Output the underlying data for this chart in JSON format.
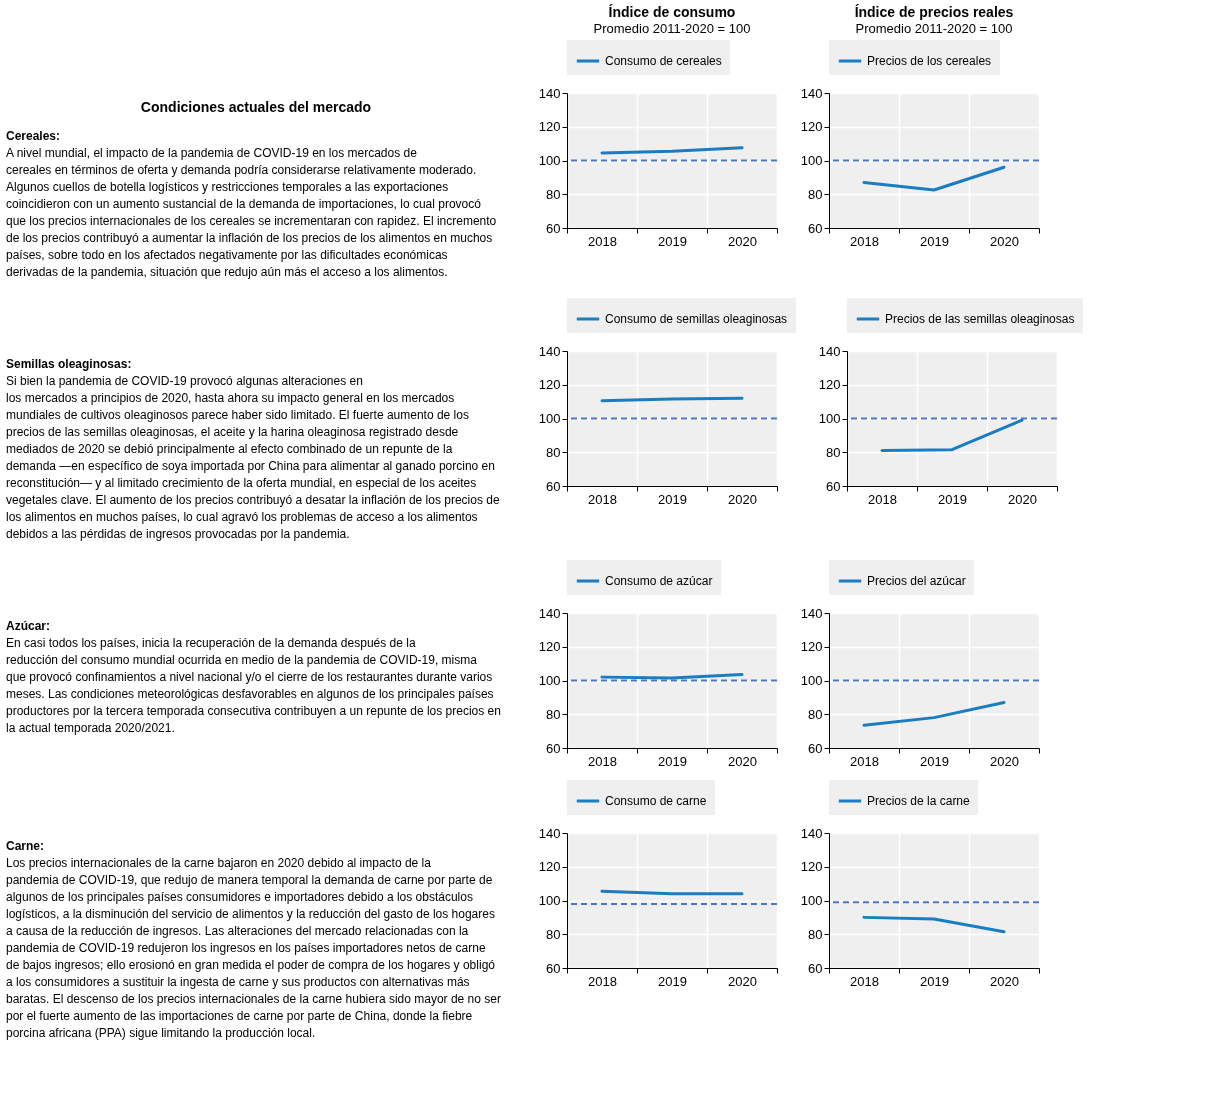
{
  "chart_data": [
    {
      "type": "other",
      "title": "Condiciones actuales del mercado",
      "subtitle": "Cereales:",
      "annotations": [
        "A nivel mundial, el impacto de la pandemia de COVID-19 en los mercados de",
        "cereales en términos de oferta y demanda podría considerarse relativamente moderado.",
        "Algunos cuellos de botella logísticos y restricciones temporales a las exportaciones",
        "coincidieron con un aumento sustancial de la demanda de importaciones, lo cual provocó",
        "que los precios internacionales de los cereales se incrementaran con rapidez. El incremento",
        "de los precios contribuyó a aumentar la inflación de los precios de los alimentos en muchos",
        "países, sobre todo en los afectados negativamente por las dificultades económicas",
        "derivadas de la pandemia, situación que redujo aún más el acceso a los alimentos."
      ]
    },
    {
      "type": "line",
      "title": "Índice de consumo",
      "subtitle": "Promedio 2011-2020 = 100",
      "categories": [
        "2018",
        "2019",
        "2020"
      ],
      "series": [
        {
          "name": "Consumo de cereales",
          "color": "#1a7dc2",
          "values": [
            104.5,
            105.5,
            107.5
          ]
        }
      ],
      "ylim": [
        60,
        140
      ],
      "yticks": [
        60,
        80,
        100,
        120,
        140
      ],
      "ref_lines": [
        {
          "axis": "y",
          "value": 100,
          "color": "#4a78c8",
          "line_style": "dashed"
        }
      ],
      "grid": true,
      "legend": "top",
      "line_style": "solid"
    },
    {
      "type": "line",
      "title": "Índice de precios reales",
      "subtitle": "Promedio 2011-2020 = 100",
      "categories": [
        "2018",
        "2019",
        "2020"
      ],
      "series": [
        {
          "name": "Precios de los cereales",
          "color": "#1a7dc2",
          "values": [
            87,
            82.5,
            96
          ]
        }
      ],
      "ylim": [
        60,
        140
      ],
      "yticks": [
        60,
        80,
        100,
        120,
        140
      ],
      "ref_lines": [
        {
          "axis": "y",
          "value": 100,
          "color": "#4a78c8",
          "line_style": "dashed"
        }
      ],
      "grid": true,
      "legend": "top",
      "line_style": "solid"
    },
    {
      "type": "other",
      "subtitle": "Semillas oleaginosas:",
      "annotations": [
        "Si bien la pandemia de COVID-19 provocó algunas alteraciones en",
        "los mercados a principios de 2020, hasta ahora su impacto general en los mercados",
        "mundiales de cultivos oleaginosos parece haber sido limitado. El fuerte aumento de los",
        "precios de las semillas oleaginosas, el aceite y la harina oleaginosa registrado desde",
        "mediados de 2020 se debió principalmente al efecto combinado de un repunte de la",
        "demanda —en específico de soya importada por China para alimentar al ganado porcino en",
        "reconstitución— y al limitado crecimiento de la oferta mundial, en especial de los aceites",
        "vegetales clave. El aumento de los precios contribuyó a desatar la inflación de los precios de",
        "los alimentos en muchos países, lo cual agravó los problemas de acceso a los alimentos",
        "debidos a las pérdidas de ingresos provocadas por la pandemia."
      ]
    },
    {
      "type": "line",
      "categories": [
        "2018",
        "2019",
        "2020"
      ],
      "series": [
        {
          "name": "Consumo de semillas oleaginosas",
          "color": "#1a7dc2",
          "values": [
            110.5,
            111.5,
            112
          ]
        }
      ],
      "ylim": [
        60,
        140
      ],
      "yticks": [
        60,
        80,
        100,
        120,
        140
      ],
      "ref_lines": [
        {
          "axis": "y",
          "value": 100,
          "color": "#4a78c8",
          "line_style": "dashed"
        }
      ],
      "grid": true,
      "legend": "top",
      "line_style": "solid"
    },
    {
      "type": "line",
      "categories": [
        "2018",
        "2019",
        "2020"
      ],
      "series": [
        {
          "name": "Precios de las semillas oleaginosas",
          "color": "#1a7dc2",
          "values": [
            81,
            81.5,
            99
          ]
        }
      ],
      "ylim": [
        60,
        140
      ],
      "yticks": [
        60,
        80,
        100,
        120,
        140
      ],
      "ref_lines": [
        {
          "axis": "y",
          "value": 100,
          "color": "#4a78c8",
          "line_style": "dashed"
        }
      ],
      "grid": true,
      "legend": "top",
      "line_style": "solid"
    },
    {
      "type": "other",
      "subtitle": "Azúcar:",
      "annotations": [
        "En casi todos los países, inicia la recuperación de la demanda después de la",
        "reducción del consumo mundial ocurrida en medio de la pandemia de COVID-19, misma",
        "que provocó confinamientos a nivel nacional y/o el cierre de los restaurantes durante varios",
        "meses. Las condiciones meteorológicas desfavorables en algunos de los principales países",
        "productores por la tercera temporada consecutiva contribuyen a un repunte de los precios en",
        "la actual temporada 2020/2021."
      ]
    },
    {
      "type": "line",
      "categories": [
        "2018",
        "2019",
        "2020"
      ],
      "series": [
        {
          "name": "Consumo de azúcar",
          "color": "#1a7dc2",
          "values": [
            102,
            101.5,
            103.5
          ]
        }
      ],
      "ylim": [
        60,
        140
      ],
      "yticks": [
        60,
        80,
        100,
        120,
        140
      ],
      "ref_lines": [
        {
          "axis": "y",
          "value": 100,
          "color": "#4a78c8",
          "line_style": "dashed"
        }
      ],
      "grid": true,
      "legend": "top",
      "line_style": "solid"
    },
    {
      "type": "line",
      "categories": [
        "2018",
        "2019",
        "2020"
      ],
      "series": [
        {
          "name": "Precios del azúcar",
          "color": "#1a7dc2",
          "values": [
            73.5,
            78,
            87
          ]
        }
      ],
      "ylim": [
        60,
        140
      ],
      "yticks": [
        60,
        80,
        100,
        120,
        140
      ],
      "ref_lines": [
        {
          "axis": "y",
          "value": 100,
          "color": "#4a78c8",
          "line_style": "dashed"
        }
      ],
      "grid": true,
      "legend": "top",
      "line_style": "solid"
    },
    {
      "type": "other",
      "subtitle": "Carne:",
      "annotations": [
        "Los precios internacionales de la carne bajaron en 2020 debido al impacto de la",
        "pandemia de COVID-19, que redujo de manera temporal la demanda de carne por parte de",
        "algunos de los principales países consumidores e importadores debido a los obstáculos",
        "logísticos, a la disminución del servicio de alimentos y la reducción del gasto de los hogares",
        "a causa de la reducción de ingresos. Las alteraciones del mercado relacionadas con la",
        "pandemia de COVID-19 redujeron los ingresos en los países importadores netos de carne",
        "de bajos ingresos; ello erosionó en gran medida el poder de compra de los hogares y obligó",
        "a los consumidores a sustituir la ingesta de carne y sus productos con alternativas más",
        "baratas. El descenso de los precios internacionales de la carne hubiera sido mayor de no ser",
        "por el fuerte aumento de las importaciones de carne por parte de China, donde la fiebre",
        "porcina africana (PPA) sigue limitando la producción local."
      ]
    },
    {
      "type": "line",
      "categories": [
        "2018",
        "2019",
        "2020"
      ],
      "series": [
        {
          "name": "Consumo de carne",
          "color": "#1a7dc2",
          "values": [
            105.5,
            104,
            104
          ]
        }
      ],
      "ylim": [
        60,
        140
      ],
      "yticks": [
        60,
        80,
        100,
        120,
        140
      ],
      "ref_lines": [
        {
          "axis": "y",
          "value": 98,
          "color": "#4a78c8",
          "line_style": "dashed"
        }
      ],
      "grid": true,
      "legend": "top",
      "line_style": "solid"
    },
    {
      "type": "line",
      "categories": [
        "2018",
        "2019",
        "2020"
      ],
      "series": [
        {
          "name": "Precios de la carne",
          "color": "#1a7dc2",
          "values": [
            90,
            89,
            81.5
          ]
        }
      ],
      "ylim": [
        60,
        140
      ],
      "yticks": [
        60,
        80,
        100,
        120,
        140
      ],
      "ref_lines": [
        {
          "axis": "y",
          "value": 99,
          "color": "#4a78c8",
          "line_style": "dashed"
        }
      ],
      "grid": true,
      "legend": "top",
      "line_style": "solid"
    }
  ]
}
